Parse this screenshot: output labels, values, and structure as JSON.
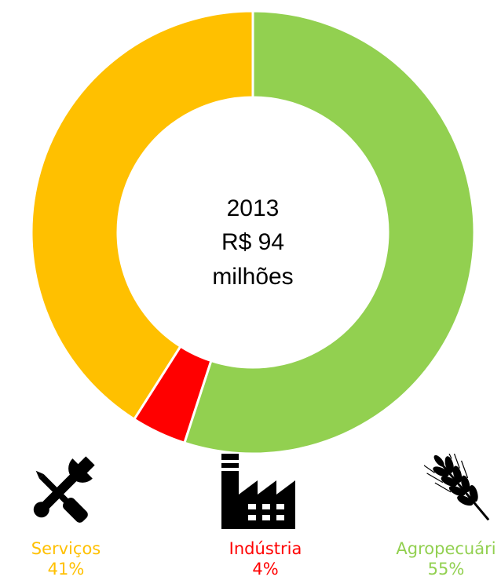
{
  "chart_data": {
    "type": "pie",
    "variant": "donut",
    "center_text": [
      "2013",
      "R$ 94",
      "milhões"
    ],
    "slices": [
      {
        "label": "Agropecuári",
        "value": 55,
        "display": "55%",
        "color": "#92D050",
        "icon": "wheat-icon"
      },
      {
        "label": "Indústria",
        "value": 4,
        "display": "4%",
        "color": "#FF0000",
        "icon": "factory-icon"
      },
      {
        "label": "Serviços",
        "value": 41,
        "display": "41%",
        "color": "#FFC000",
        "icon": "tools-icon"
      }
    ]
  }
}
